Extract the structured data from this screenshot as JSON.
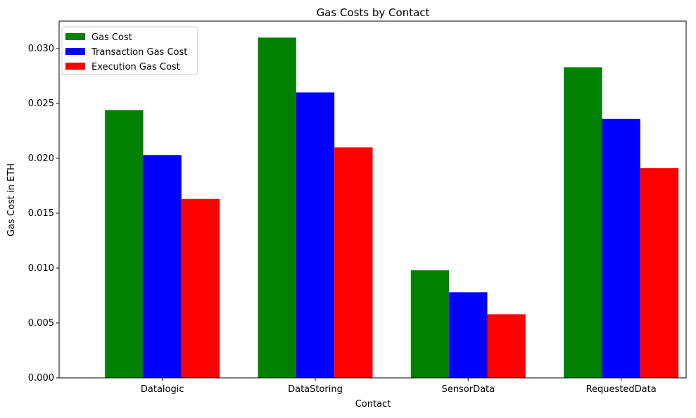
{
  "chart_data": {
    "type": "bar",
    "title": "Gas Costs by Contact",
    "xlabel": "Contact",
    "ylabel": "Gas Cost in ETH",
    "categories": [
      "Datalogic",
      "DataStoring",
      "SensorData",
      "RequestedData"
    ],
    "series": [
      {
        "name": "Gas Cost",
        "color": "#008000",
        "values": [
          0.0244,
          0.031,
          0.0098,
          0.0283
        ]
      },
      {
        "name": "Transaction Gas Cost",
        "color": "#0000ff",
        "values": [
          0.0203,
          0.026,
          0.0078,
          0.0236
        ]
      },
      {
        "name": "Execution Gas Cost",
        "color": "#ff0000",
        "values": [
          0.0163,
          0.021,
          0.0058,
          0.0191
        ]
      }
    ],
    "ylim": [
      0,
      0.0325
    ],
    "yticks": [
      0.0,
      0.005,
      0.01,
      0.015,
      0.02,
      0.025,
      0.03
    ],
    "ytick_labels": [
      "0.000",
      "0.005",
      "0.010",
      "0.015",
      "0.020",
      "0.025",
      "0.030"
    ],
    "grid": false,
    "legend_position": "top-left"
  }
}
